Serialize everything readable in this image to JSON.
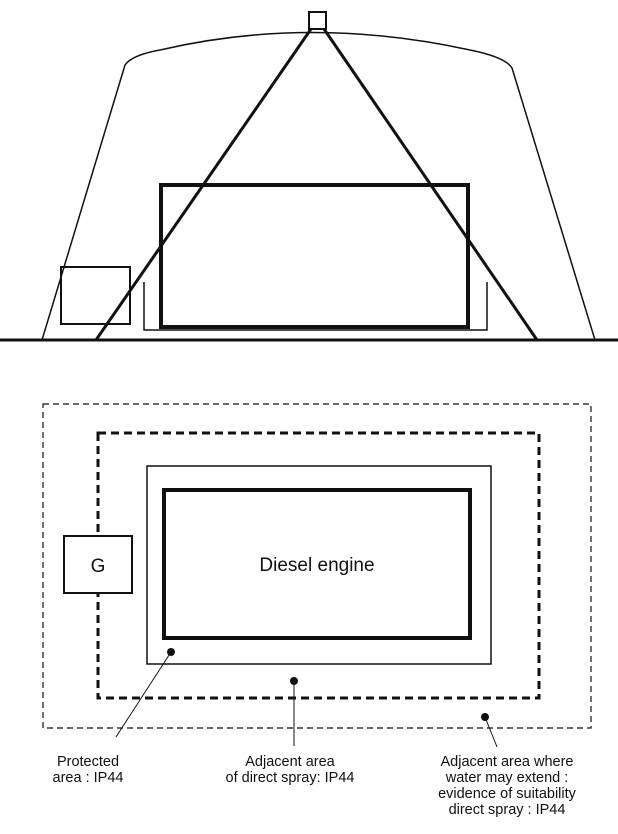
{
  "plan_view": {
    "generator_label": "G",
    "engine_label": "Diesel engine"
  },
  "captions": {
    "protected": [
      "Protected",
      "area : IP44"
    ],
    "adjacent_direct": [
      "Adjacent area",
      "of direct spray: IP44"
    ],
    "adjacent_extend": [
      "Adjacent area where",
      "water may extend :",
      "evidence of suitability",
      "direct spray : IP44"
    ]
  }
}
